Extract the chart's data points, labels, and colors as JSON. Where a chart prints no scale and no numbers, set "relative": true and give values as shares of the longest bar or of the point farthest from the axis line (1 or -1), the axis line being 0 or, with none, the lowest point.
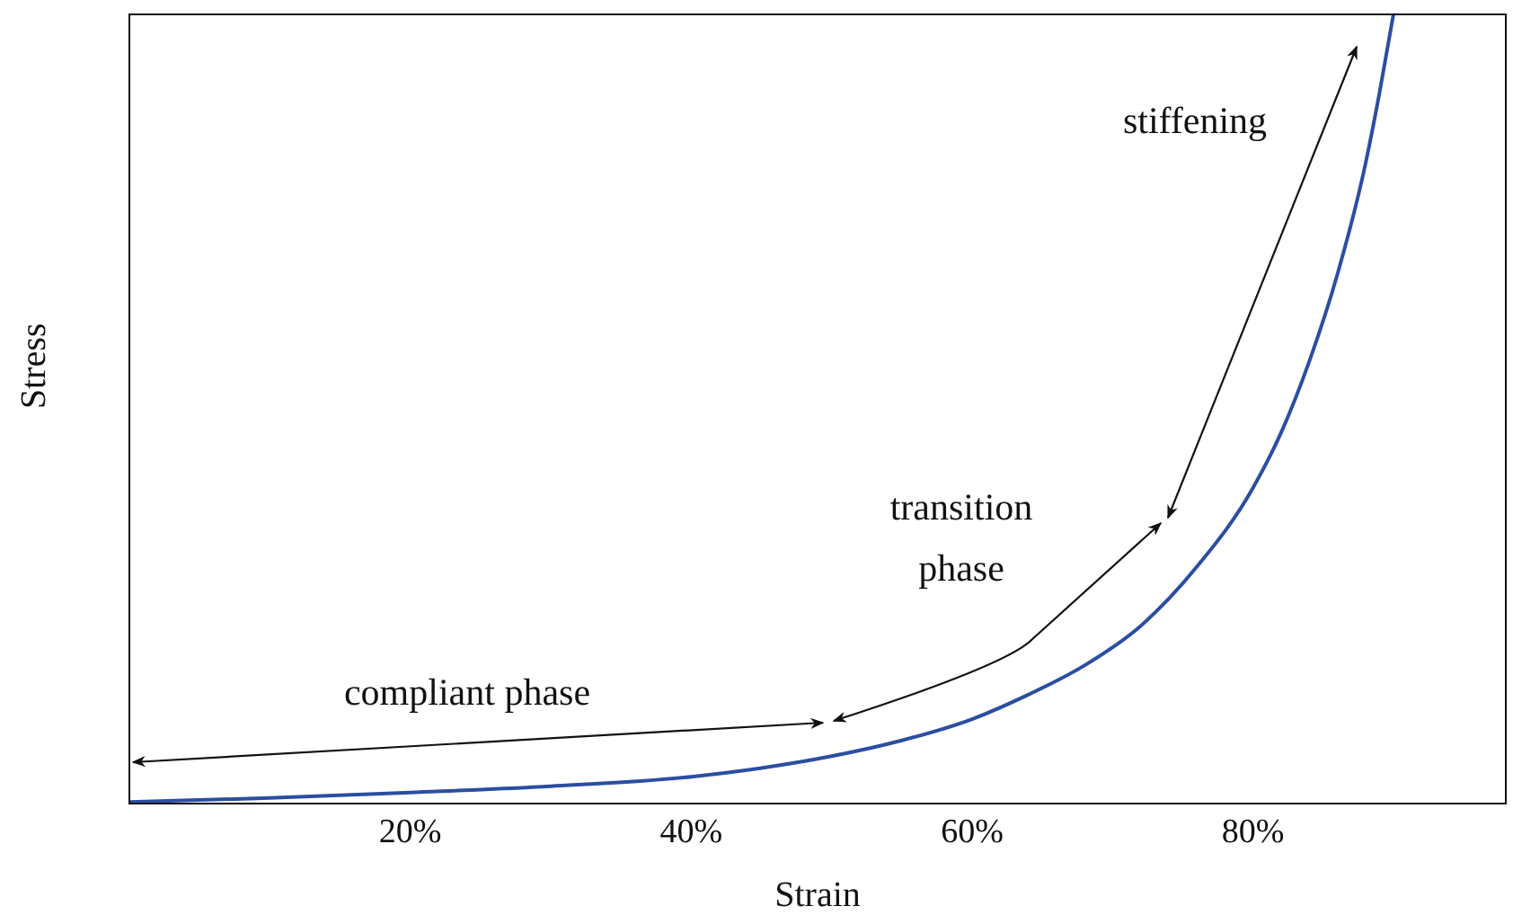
{
  "chart_data": {
    "type": "line",
    "xlabel": "Strain",
    "ylabel": "Stress",
    "relative": true,
    "xlim": [
      0,
      98
    ],
    "xticks": [
      {
        "value": 20,
        "label": "20%"
      },
      {
        "value": 40,
        "label": "40%"
      },
      {
        "value": 60,
        "label": "60%"
      },
      {
        "value": 80,
        "label": "80%"
      }
    ],
    "marker": "none",
    "series": [
      {
        "color": "#2b4ea2",
        "x": [
          0,
          10,
          20,
          30,
          40,
          45,
          50,
          55,
          60,
          64,
          68,
          72,
          76,
          80,
          82,
          84,
          86,
          88,
          89,
          90
        ],
        "values": [
          0.002,
          0.007,
          0.014,
          0.022,
          0.034,
          0.045,
          0.06,
          0.08,
          0.107,
          0.138,
          0.175,
          0.225,
          0.3,
          0.4,
          0.47,
          0.56,
          0.67,
          0.81,
          0.9,
          1.0
        ]
      }
    ],
    "annotations": [
      "compliant phase",
      "transition phase",
      "stiffening"
    ]
  }
}
